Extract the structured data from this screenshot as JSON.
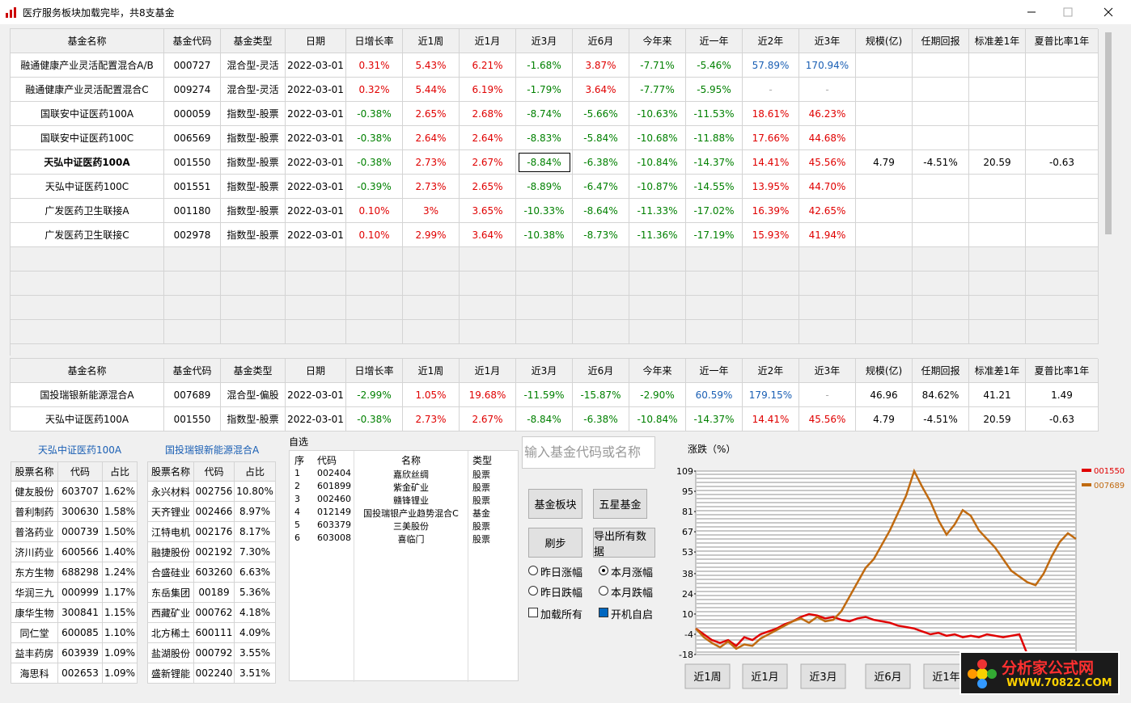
{
  "window": {
    "title": "医疗服务板块加载完毕，共8支基金"
  },
  "fund_table": {
    "columns": [
      "基金名称",
      "基金代码",
      "基金类型",
      "日期",
      "日增长率",
      "近1周",
      "近1月",
      "近3月",
      "近6月",
      "今年来",
      "近一年",
      "近2年",
      "近3年",
      "规模(亿)",
      "任期回报",
      "标准差1年",
      "夏普比率1年"
    ],
    "rows": [
      [
        "融通健康产业灵活配置混合A/B",
        "000727",
        "混合型-灵活",
        "2022-03-01",
        "0.31%",
        "5.43%",
        "6.21%",
        "-1.68%",
        "3.87%",
        "-7.71%",
        "-5.46%",
        "57.89%",
        "170.94%",
        null,
        null,
        null,
        null
      ],
      [
        "融通健康产业灵活配置混合C",
        "009274",
        "混合型-灵活",
        "2022-03-01",
        "0.32%",
        "5.44%",
        "6.19%",
        "-1.79%",
        "3.64%",
        "-7.77%",
        "-5.95%",
        "-",
        "-",
        null,
        null,
        null,
        null
      ],
      [
        "国联安中证医药100A",
        "000059",
        "指数型-股票",
        "2022-03-01",
        "-0.38%",
        "2.65%",
        "2.68%",
        "-8.74%",
        "-5.66%",
        "-10.63%",
        "-11.53%",
        "18.61%",
        "46.23%",
        null,
        null,
        null,
        null
      ],
      [
        "国联安中证医药100C",
        "006569",
        "指数型-股票",
        "2022-03-01",
        "-0.38%",
        "2.64%",
        "2.64%",
        "-8.83%",
        "-5.84%",
        "-10.68%",
        "-11.88%",
        "17.66%",
        "44.68%",
        null,
        null,
        null,
        null
      ],
      [
        "天弘中证医药100A",
        "001550",
        "指数型-股票",
        "2022-03-01",
        "-0.38%",
        "2.73%",
        "2.67%",
        "-8.84%",
        "-6.38%",
        "-10.84%",
        "-14.37%",
        "14.41%",
        "45.56%",
        "4.79",
        "-4.51%",
        "20.59",
        "-0.63"
      ],
      [
        "天弘中证医药100C",
        "001551",
        "指数型-股票",
        "2022-03-01",
        "-0.39%",
        "2.73%",
        "2.65%",
        "-8.89%",
        "-6.47%",
        "-10.87%",
        "-14.55%",
        "13.95%",
        "44.70%",
        null,
        null,
        null,
        null
      ],
      [
        "广发医药卫生联接A",
        "001180",
        "指数型-股票",
        "2022-03-01",
        "0.10%",
        "3%",
        "3.65%",
        "-10.33%",
        "-8.64%",
        "-11.33%",
        "-17.02%",
        "16.39%",
        "42.65%",
        null,
        null,
        null,
        null
      ],
      [
        "广发医药卫生联接C",
        "002978",
        "指数型-股票",
        "2022-03-01",
        "0.10%",
        "2.99%",
        "3.64%",
        "-10.38%",
        "-8.73%",
        "-11.36%",
        "-17.19%",
        "15.93%",
        "41.94%",
        null,
        null,
        null,
        null
      ]
    ]
  },
  "compare_table": {
    "columns": [
      "基金名称",
      "基金代码",
      "基金类型",
      "日期",
      "日增长率",
      "近1周",
      "近1月",
      "近3月",
      "近6月",
      "今年来",
      "近一年",
      "近2年",
      "近3年",
      "规模(亿)",
      "任期回报",
      "标准差1年",
      "夏普比率1年"
    ],
    "rows": [
      [
        "国投瑞银新能源混合A",
        "007689",
        "混合型-偏股",
        "2022-03-01",
        "-2.99%",
        "1.05%",
        "19.68%",
        "-11.59%",
        "-15.87%",
        "-2.90%",
        "60.59%",
        "179.15%",
        "-",
        "46.96",
        "84.62%",
        "41.21",
        "1.49"
      ],
      [
        "天弘中证医药100A",
        "001550",
        "指数型-股票",
        "2022-03-01",
        "-0.38%",
        "2.73%",
        "2.67%",
        "-8.84%",
        "-6.38%",
        "-10.84%",
        "-14.37%",
        "14.41%",
        "45.56%",
        "4.79",
        "-4.51%",
        "20.59",
        "-0.63"
      ]
    ]
  },
  "holdings": [
    {
      "title": "天弘中证医药100A",
      "columns": [
        "股票名称",
        "代码",
        "占比"
      ],
      "rows": [
        [
          "健友股份",
          "603707",
          "1.62%"
        ],
        [
          "普利制药",
          "300630",
          "1.58%"
        ],
        [
          "普洛药业",
          "000739",
          "1.50%"
        ],
        [
          "济川药业",
          "600566",
          "1.40%"
        ],
        [
          "东方生物",
          "688298",
          "1.24%"
        ],
        [
          "华润三九",
          "000999",
          "1.17%"
        ],
        [
          "康华生物",
          "300841",
          "1.15%"
        ],
        [
          "同仁堂",
          "600085",
          "1.10%"
        ],
        [
          "益丰药房",
          "603939",
          "1.09%"
        ],
        [
          "海思科",
          "002653",
          "1.09%"
        ]
      ]
    },
    {
      "title": "国投瑞银新能源混合A",
      "columns": [
        "股票名称",
        "代码",
        "占比"
      ],
      "rows": [
        [
          "永兴材料",
          "002756",
          "10.80%"
        ],
        [
          "天齐锂业",
          "002466",
          "8.97%"
        ],
        [
          "江特电机",
          "002176",
          "8.17%"
        ],
        [
          "融捷股份",
          "002192",
          "7.30%"
        ],
        [
          "合盛硅业",
          "603260",
          "6.63%"
        ],
        [
          "东岳集团",
          "00189",
          "5.36%"
        ],
        [
          "西藏矿业",
          "000762",
          "4.18%"
        ],
        [
          "北方稀土",
          "600111",
          "4.09%"
        ],
        [
          "盐湖股份",
          "000792",
          "3.55%"
        ],
        [
          "盛新锂能",
          "002240",
          "3.51%"
        ]
      ]
    }
  ],
  "watchlist": {
    "title": "自选",
    "columns": [
      "序",
      "代码",
      "名称",
      "类型"
    ],
    "rows": [
      [
        "1",
        "002404",
        "嘉欣丝绸",
        "股票"
      ],
      [
        "2",
        "601899",
        "紫金矿业",
        "股票"
      ],
      [
        "3",
        "002460",
        "赣锋锂业",
        "股票"
      ],
      [
        "4",
        "012149",
        "国投瑞银产业趋势混合C",
        "基金"
      ],
      [
        "5",
        "603379",
        "三美股份",
        "股票"
      ],
      [
        "6",
        "603008",
        "喜临门",
        "股票"
      ]
    ]
  },
  "controls": {
    "search_placeholder": "输入基金代码或名称",
    "buttons": [
      "基金板块",
      "五星基金",
      "刷步",
      "导出所有数据"
    ],
    "radios": [
      {
        "label": "昨日涨幅",
        "checked": false
      },
      {
        "label": "本月涨幅",
        "checked": true
      },
      {
        "label": "昨日跌幅",
        "checked": false
      },
      {
        "label": "本月跌幅",
        "checked": false
      }
    ],
    "checkboxes": [
      {
        "label": "加载所有",
        "checked": false
      },
      {
        "label": "开机自启",
        "checked": true
      }
    ]
  },
  "chart_data": {
    "type": "line",
    "title": "涨跌（%）",
    "ylim": [
      -18,
      109
    ],
    "yticks": [
      109,
      95,
      81,
      67,
      53,
      38,
      24,
      10,
      -4,
      -18
    ],
    "grid": true,
    "series": [
      {
        "name": "001550",
        "color": "#e00000",
        "values": [
          0,
          -4,
          -8,
          -10,
          -8,
          -12,
          -6,
          -8,
          -4,
          -2,
          0,
          3,
          5,
          8,
          10,
          9,
          7,
          8,
          6,
          5,
          7,
          8,
          6,
          5,
          4,
          2,
          1,
          0,
          -2,
          -4,
          -3,
          -5,
          -4,
          -6,
          -5,
          -6,
          -4,
          -5,
          -6,
          -5,
          -4,
          -18,
          null,
          null,
          null,
          null,
          null,
          null
        ]
      },
      {
        "name": "007689",
        "color": "#c06a10",
        "values": [
          0,
          -6,
          -10,
          -13,
          -9,
          -14,
          -11,
          -12,
          -7,
          -4,
          -1,
          2,
          5,
          7,
          4,
          8,
          5,
          6,
          12,
          22,
          32,
          42,
          48,
          58,
          68,
          80,
          92,
          109,
          98,
          88,
          75,
          65,
          72,
          82,
          78,
          68,
          62,
          56,
          48,
          40,
          36,
          32,
          30,
          38,
          50,
          60,
          66,
          62
        ]
      }
    ]
  },
  "chart_buttons": [
    "近1周",
    "近1月",
    "近3月",
    "近6月",
    "近1年"
  ],
  "logo": {
    "name": "分析家公式网",
    "url": "WWW.70822.COM"
  }
}
